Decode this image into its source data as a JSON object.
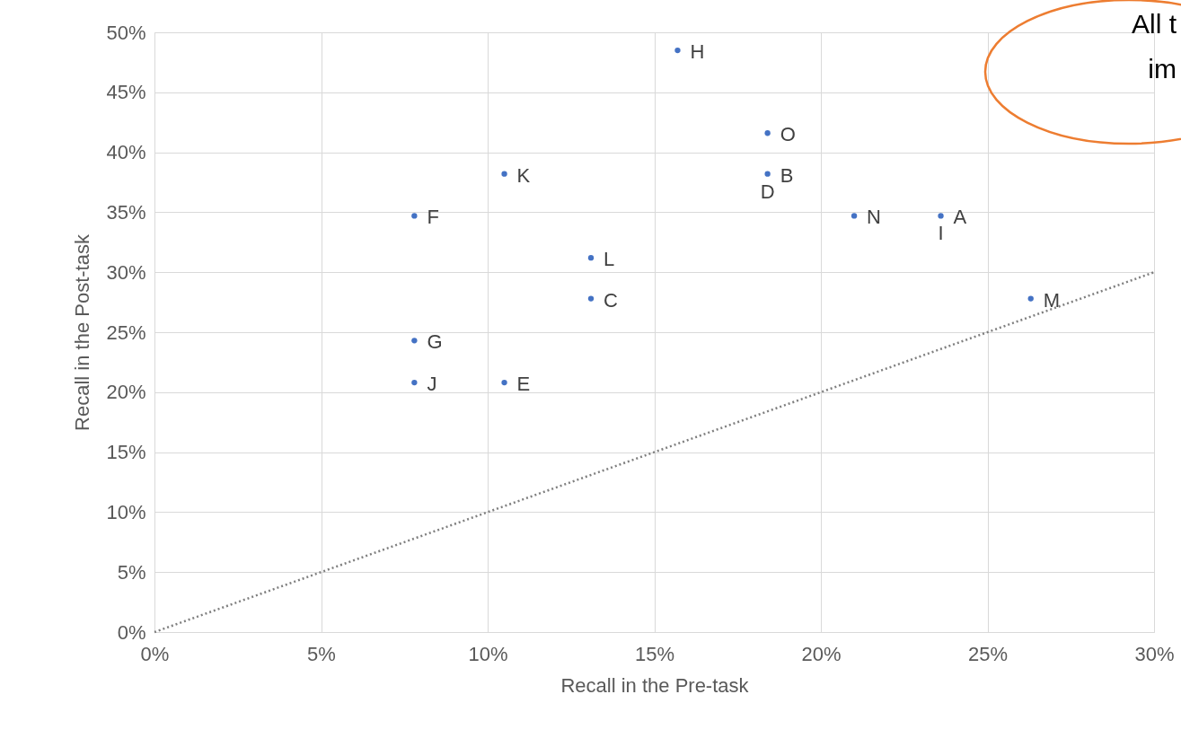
{
  "chart_data": {
    "type": "scatter",
    "xlabel": "Recall in the Pre-task",
    "ylabel": "Recall in the Post-task",
    "xlim": [
      0,
      30
    ],
    "ylim": [
      0,
      50
    ],
    "xticks": [
      {
        "value": 0,
        "label": "0%"
      },
      {
        "value": 5,
        "label": "5%"
      },
      {
        "value": 10,
        "label": "10%"
      },
      {
        "value": 15,
        "label": "15%"
      },
      {
        "value": 20,
        "label": "20%"
      },
      {
        "value": 25,
        "label": "25%"
      },
      {
        "value": 30,
        "label": "30%"
      }
    ],
    "yticks": [
      {
        "value": 0,
        "label": "0%"
      },
      {
        "value": 5,
        "label": "5%"
      },
      {
        "value": 10,
        "label": "10%"
      },
      {
        "value": 15,
        "label": "15%"
      },
      {
        "value": 20,
        "label": "20%"
      },
      {
        "value": 25,
        "label": "25%"
      },
      {
        "value": 30,
        "label": "30%"
      },
      {
        "value": 35,
        "label": "35%"
      },
      {
        "value": 40,
        "label": "40%"
      },
      {
        "value": 45,
        "label": "45%"
      },
      {
        "value": 50,
        "label": "50%"
      }
    ],
    "grid": true,
    "series": [
      {
        "marker": "circle",
        "color": "#4472c4",
        "x": [
          23.6,
          18.4,
          13.1,
          10.5,
          7.8,
          7.8,
          15.7,
          7.8,
          10.5,
          13.1,
          26.3,
          21.0,
          18.4
        ],
        "values": [
          34.7,
          38.2,
          27.8,
          20.8,
          34.7,
          24.3,
          48.5,
          20.8,
          38.2,
          31.2,
          27.8,
          34.7,
          41.6
        ]
      },
      {
        "type": "line",
        "marker": "none",
        "color": "#7f7f7f",
        "line_style": "dotted",
        "x": [
          0,
          30
        ],
        "values": [
          0,
          30
        ]
      }
    ],
    "annotations": [
      {
        "text": "A",
        "x": 23.6,
        "y": 34.7
      },
      {
        "text": "B",
        "x": 18.4,
        "y": 38.2
      },
      {
        "text": "C",
        "x": 13.1,
        "y": 27.8
      },
      {
        "text": "D",
        "x": 18.4,
        "y": 38.2
      },
      {
        "text": "E",
        "x": 10.5,
        "y": 20.8
      },
      {
        "text": "F",
        "x": 7.8,
        "y": 34.7
      },
      {
        "text": "G",
        "x": 7.8,
        "y": 24.3
      },
      {
        "text": "H",
        "x": 15.7,
        "y": 48.5
      },
      {
        "text": "I",
        "x": 23.6,
        "y": 34.7
      },
      {
        "text": "J",
        "x": 7.8,
        "y": 20.8
      },
      {
        "text": "K",
        "x": 10.5,
        "y": 38.2
      },
      {
        "text": "L",
        "x": 13.1,
        "y": 31.2
      },
      {
        "text": "M",
        "x": 26.3,
        "y": 27.8
      },
      {
        "text": "N",
        "x": 21.0,
        "y": 34.7
      },
      {
        "text": "O",
        "x": 18.4,
        "y": 41.6
      },
      "All t",
      "im"
    ]
  }
}
